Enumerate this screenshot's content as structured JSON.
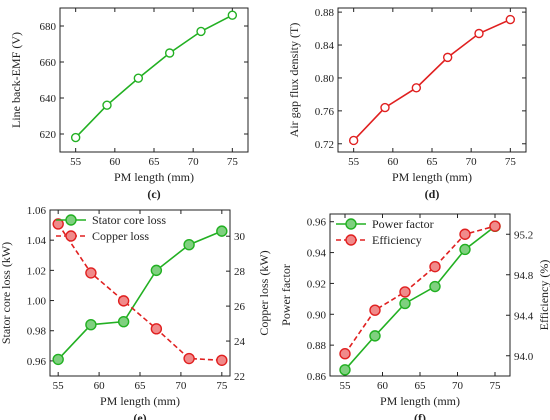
{
  "chart_data": [
    {
      "panel": "(c)",
      "type": "line",
      "xlabel": "PM length (mm)",
      "ylabel": "Line back-EMF (V)",
      "x": [
        55,
        59,
        63,
        67,
        71,
        75
      ],
      "xlim": [
        53,
        77
      ],
      "xticks": [
        55,
        60,
        65,
        70,
        75
      ],
      "ylim": [
        610,
        690
      ],
      "yticks": [
        620,
        640,
        660,
        680
      ],
      "series": [
        {
          "values": [
            618,
            636,
            651,
            665,
            677,
            686
          ],
          "color": "#22b022",
          "marker": "circle",
          "dashed": false,
          "axis": "left"
        }
      ]
    },
    {
      "panel": "(d)",
      "type": "line",
      "xlabel": "PM length (mm)",
      "ylabel": "Air gap flux density (T)",
      "x": [
        55,
        59,
        63,
        67,
        71,
        75
      ],
      "xlim": [
        53,
        77
      ],
      "xticks": [
        55,
        60,
        65,
        70,
        75
      ],
      "ylim": [
        0.71,
        0.885
      ],
      "yticks": [
        "0.72",
        "0.76",
        "0.80",
        "0.84",
        "0.88"
      ],
      "series": [
        {
          "values": [
            0.724,
            0.764,
            0.788,
            0.825,
            0.854,
            0.871
          ],
          "color": "#e02020",
          "marker": "circle",
          "dashed": false,
          "axis": "left"
        }
      ]
    },
    {
      "panel": "(e)",
      "type": "line",
      "xlabel": "PM length (mm)",
      "ylabel": "Stator core loss (kW)",
      "y2label": "Copper loss (kW)",
      "x": [
        55,
        59,
        63,
        67,
        71,
        75
      ],
      "xlim": [
        54,
        76
      ],
      "xticks": [
        55,
        60,
        65,
        70,
        75
      ],
      "ylim": [
        0.95,
        1.06
      ],
      "yticks": [
        "0.96",
        "0.98",
        "1.00",
        "1.02",
        "1.04",
        "1.06"
      ],
      "y2lim": [
        22,
        31.5
      ],
      "y2ticks": [
        22,
        24,
        26,
        28,
        30
      ],
      "legend": "top-left",
      "series": [
        {
          "name": "Stator core loss",
          "values": [
            0.961,
            0.984,
            0.986,
            1.02,
            1.037,
            1.046
          ],
          "color": "#22b022",
          "marker": "circle",
          "dashed": false,
          "axis": "left"
        },
        {
          "name": "Copper loss",
          "values": [
            30.7,
            27.9,
            26.3,
            24.7,
            23.0,
            22.9
          ],
          "color": "#e02020",
          "marker": "circle",
          "dashed": true,
          "axis": "right"
        }
      ]
    },
    {
      "panel": "(f)",
      "type": "line",
      "xlabel": "PM length (mm)",
      "ylabel": "Power factor",
      "y2label": "Efficiency (%)",
      "x": [
        55,
        59,
        63,
        67,
        71,
        75
      ],
      "xlim": [
        53,
        77
      ],
      "xticks": [
        55,
        60,
        65,
        70,
        75
      ],
      "ylim": [
        0.86,
        0.965
      ],
      "yticks": [
        "0.86",
        "0.88",
        "0.90",
        "0.92",
        "0.94",
        "0.96"
      ],
      "y2lim": [
        93.8,
        95.4
      ],
      "y2ticks": [
        "94.0",
        "94.4",
        "94.8",
        "95.2"
      ],
      "legend": "top-left",
      "series": [
        {
          "name": "Power factor",
          "values": [
            0.864,
            0.886,
            0.907,
            0.918,
            0.942,
            0.957
          ],
          "color": "#22b022",
          "marker": "circle",
          "dashed": false,
          "axis": "left"
        },
        {
          "name": "Efficiency",
          "values": [
            94.02,
            94.45,
            94.63,
            94.88,
            95.2,
            95.28
          ],
          "color": "#e02020",
          "marker": "circle",
          "dashed": true,
          "axis": "right"
        }
      ]
    }
  ]
}
